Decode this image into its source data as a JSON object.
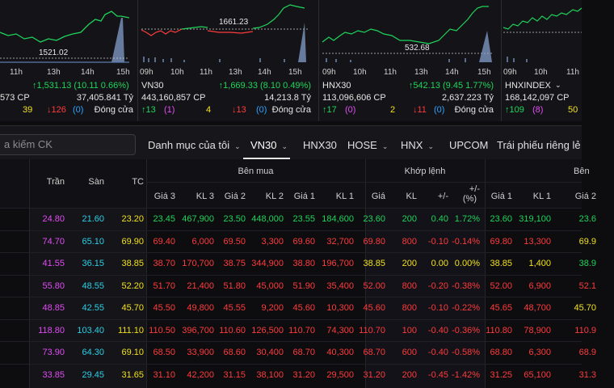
{
  "panels": [
    {
      "name": "partial-index",
      "ref_label": "1521.02",
      "ticks": [
        "11h",
        "13h",
        "14h",
        "15h"
      ],
      "value_line": "↑1,531.13 (10.11 0.66%)",
      "volume": "573 CP",
      "value_total": "37,405.841 Tỷ",
      "up": "39",
      "down": "↓126",
      "unchanged": "(0)",
      "status": "Đóng cửa",
      "up_color": "#f2e01f"
    },
    {
      "name": "VN30",
      "ref_label": "1661.23",
      "ticks": [
        "09h",
        "10h",
        "11h",
        "13h",
        "14h",
        "15h"
      ],
      "value_line": "↑1,669.33 (8.10 0.49%)",
      "volume": "443,160,857 CP",
      "value_total": "14,213.8 Tỷ",
      "up": "↑13",
      "up_extra": "(1)",
      "ceil_ct": "4",
      "down": "↓13",
      "unchanged": "(0)",
      "status": "Đóng cửa"
    },
    {
      "name": "HNX30",
      "ref_label": "532.68",
      "ticks": [
        "09h",
        "10h",
        "11h",
        "13h",
        "14h",
        "15h"
      ],
      "value_line": "↑542.13 (9.45 1.77%)",
      "volume": "113,096,606 CP",
      "value_total": "2,637.223 Tỷ",
      "up": "↑17",
      "up_extra": "(0)",
      "ceil_ct": "2",
      "down": "↓11",
      "unchanged": "(0)",
      "status": "Đóng cửa"
    },
    {
      "name": "HNXINDEX",
      "ticks": [
        "09h",
        "10h",
        "11h"
      ],
      "volume": "168,142,097 CP",
      "up": "↑109",
      "up_extra": "(8)",
      "ceil_ct": "50"
    }
  ],
  "toolbar": {
    "search_placeholder": "a kiếm CK",
    "tabs": [
      {
        "label": "Danh mục của tôi",
        "chevron": "⌄"
      },
      {
        "label": "VN30",
        "chevron": "⌄"
      },
      {
        "label": "HNX30",
        "chevron": ""
      },
      {
        "label": "HOSE",
        "chevron": "⌄"
      },
      {
        "label": "HNX",
        "chevron": "⌄"
      },
      {
        "label": "UPCOM",
        "chevron": ""
      },
      {
        "label": "Trái phiếu riêng lẻ",
        "chevron": ""
      }
    ]
  },
  "table": {
    "groups": {
      "bid": "Bên mua",
      "match": "Khớp lệnh",
      "ask": "Bên"
    },
    "headers": {
      "ceil": "Trần",
      "floor": "Sàn",
      "ref": "TC",
      "b3": "Giá 3",
      "v3": "KL 3",
      "b2": "Giá 2",
      "v2": "KL 2",
      "b1": "Giá 1",
      "v1": "KL 1",
      "mp": "Giá",
      "mv": "KL",
      "ch": "+/-",
      "pc": "+/-",
      "pc2": "(%)",
      "a1": "Giá 1",
      "av1": "KL 1",
      "a2": "Giá 2"
    },
    "colors": {
      "up": "#1fd45a",
      "down": "#ff3b3b",
      "ref": "#f2e01f",
      "ceil": "#e14cf3",
      "floor": "#2ad0e6"
    },
    "rows": [
      {
        "ceil": "24.80",
        "floor": "21.60",
        "ref": "23.20",
        "b3": "23.45",
        "v3": "467,900",
        "b2": "23.50",
        "v2": "448,000",
        "b1": "23.55",
        "v1": "184,600",
        "mp": "23.60",
        "mv": "200",
        "ch": "0.40",
        "pc": "1.72%",
        "a1": "23.60",
        "av1": "319,100",
        "a2": "23.6",
        "dir": "up"
      },
      {
        "ceil": "74.70",
        "floor": "65.10",
        "ref": "69.90",
        "b3": "69.40",
        "v3": "6,000",
        "b2": "69.50",
        "v2": "3,300",
        "b1": "69.60",
        "v1": "32,700",
        "mp": "69.80",
        "mv": "800",
        "ch": "-0.10",
        "pc": "-0.14%",
        "a1": "69.80",
        "av1": "13,300",
        "a2": "69.9",
        "dir": "down"
      },
      {
        "ceil": "41.55",
        "floor": "36.15",
        "ref": "38.85",
        "b3": "38.70",
        "v3": "170,700",
        "b2": "38.75",
        "v2": "344,900",
        "b1": "38.80",
        "v1": "196,700",
        "mp": "38.85",
        "mv": "200",
        "ch": "0.00",
        "pc": "0.00%",
        "a1": "38.85",
        "av1": "1,400",
        "a2": "38.9",
        "dir": "ref"
      },
      {
        "ceil": "55.80",
        "floor": "48.55",
        "ref": "52.20",
        "b3": "51.70",
        "v3": "21,400",
        "b2": "51.80",
        "v2": "45,000",
        "b1": "51.90",
        "v1": "35,400",
        "mp": "52.00",
        "mv": "800",
        "ch": "-0.20",
        "pc": "-0.38%",
        "a1": "52.00",
        "av1": "6,900",
        "a2": "52.1",
        "dir": "down"
      },
      {
        "ceil": "48.85",
        "floor": "42.55",
        "ref": "45.70",
        "b3": "45.50",
        "v3": "49,800",
        "b2": "45.55",
        "v2": "9,200",
        "b1": "45.60",
        "v1": "10,300",
        "mp": "45.60",
        "mv": "800",
        "ch": "-0.10",
        "pc": "-0.22%",
        "a1": "45.65",
        "av1": "48,700",
        "a2": "45.70",
        "dir": "down"
      },
      {
        "ceil": "118.80",
        "floor": "103.40",
        "ref": "111.10",
        "b3": "110.50",
        "v3": "396,700",
        "b2": "110.60",
        "v2": "126,500",
        "b1": "110.70",
        "v1": "74,300",
        "mp": "110.70",
        "mv": "100",
        "ch": "-0.40",
        "pc": "-0.36%",
        "a1": "110.80",
        "av1": "78,900",
        "a2": "110.9",
        "dir": "down"
      },
      {
        "ceil": "73.90",
        "floor": "64.30",
        "ref": "69.10",
        "b3": "68.50",
        "v3": "33,900",
        "b2": "68.60",
        "v2": "30,400",
        "b1": "68.70",
        "v1": "40,300",
        "mp": "68.70",
        "mv": "600",
        "ch": "-0.40",
        "pc": "-0.58%",
        "a1": "68.80",
        "av1": "6,300",
        "a2": "68.9",
        "dir": "down"
      },
      {
        "ceil": "33.85",
        "floor": "29.45",
        "ref": "31.65",
        "b3": "31.10",
        "v3": "42,200",
        "b2": "31.15",
        "v2": "38,100",
        "b1": "31.20",
        "v1": "29,500",
        "mp": "31.20",
        "mv": "200",
        "ch": "-0.45",
        "pc": "-1.42%",
        "a1": "31.25",
        "av1": "65,100",
        "a2": "31.3",
        "dir": "down"
      }
    ]
  }
}
